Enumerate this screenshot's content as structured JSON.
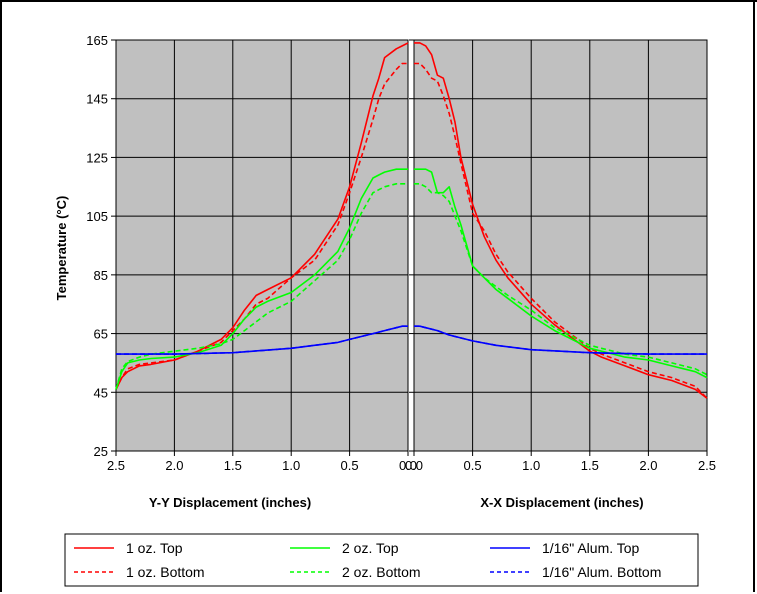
{
  "chart_data": {
    "type": "line",
    "ylabel": "Temperature (°C)",
    "ylim": [
      25,
      165
    ],
    "yticks": [
      "165",
      "145",
      "125",
      "105",
      "85",
      "65",
      "45",
      "25"
    ],
    "grid": true,
    "legend_position": "bottom",
    "panels": [
      {
        "xlabel": "Y-Y Displacement (inches)",
        "xlim": [
          2.5,
          0.0
        ],
        "xticks": [
          "2.5",
          "2.0",
          "1.5",
          "1.0",
          "0.5",
          "0.0"
        ],
        "series": [
          {
            "name": "1 oz. Top",
            "x": [
              2.5,
              2.45,
              2.4,
              2.3,
              2.2,
              2.0,
              1.8,
              1.6,
              1.5,
              1.4,
              1.3,
              1.2,
              1.0,
              0.8,
              0.6,
              0.5,
              0.4,
              0.3,
              0.25,
              0.2,
              0.1,
              0.05,
              0.0
            ],
            "y": [
              46,
              50,
              52,
              54,
              54.5,
              56,
              59,
              63,
              67,
              73,
              78,
              80,
              84,
              92,
              104,
              115,
              130,
              146,
              152,
              159,
              162,
              163,
              164
            ]
          },
          {
            "name": "1 oz. Bottom",
            "x": [
              2.5,
              2.45,
              2.4,
              2.3,
              2.2,
              2.0,
              1.8,
              1.6,
              1.5,
              1.4,
              1.3,
              1.2,
              1.0,
              0.8,
              0.6,
              0.5,
              0.4,
              0.3,
              0.25,
              0.2,
              0.1,
              0.05,
              0.0
            ],
            "y": [
              46,
              50,
              53,
              54.5,
              55,
              56,
              59,
              62,
              66,
              70,
              75,
              77,
              84,
              90,
              102,
              113,
              125,
              138,
              145,
              150,
              155,
              157,
              157
            ]
          },
          {
            "name": "2 oz. Top",
            "x": [
              2.5,
              2.45,
              2.4,
              2.3,
              2.2,
              2.0,
              1.8,
              1.6,
              1.5,
              1.4,
              1.3,
              1.2,
              1.0,
              0.8,
              0.6,
              0.5,
              0.4,
              0.3,
              0.25,
              0.2,
              0.1,
              0.05,
              0.0
            ],
            "y": [
              46,
              52,
              55,
              56,
              56.5,
              57,
              58.5,
              61,
              65,
              70,
              74,
              76,
              79,
              85,
              93,
              101,
              111,
              118,
              119,
              120,
              121,
              121,
              121
            ]
          },
          {
            "name": "2 oz. Bottom",
            "x": [
              2.5,
              2.45,
              2.4,
              2.3,
              2.2,
              2.0,
              1.8,
              1.6,
              1.5,
              1.4,
              1.3,
              1.2,
              1.0,
              0.8,
              0.6,
              0.5,
              0.4,
              0.3,
              0.25,
              0.2,
              0.1,
              0.05,
              0.0
            ],
            "y": [
              46,
              53,
              55.5,
              57,
              58,
              59,
              60,
              61.5,
              63,
              66,
              69,
              72,
              76,
              83,
              90,
              97,
              106,
              113,
              114,
              115,
              116,
              116,
              116
            ]
          },
          {
            "name": "1/16\" Alum. Top",
            "x": [
              2.5,
              2.0,
              1.5,
              1.0,
              0.8,
              0.6,
              0.5,
              0.4,
              0.3,
              0.2,
              0.1,
              0.05,
              0.0
            ],
            "y": [
              58,
              58,
              58.5,
              60,
              61,
              62,
              63,
              64,
              65,
              66,
              67,
              67.5,
              67.5
            ]
          },
          {
            "name": "1/16\" Alum. Bottom",
            "x": [
              2.5,
              2.0,
              1.5,
              1.0,
              0.8,
              0.6,
              0.5,
              0.4,
              0.3,
              0.2,
              0.1,
              0.05,
              0.0
            ],
            "y": [
              58,
              58,
              58.5,
              60,
              61,
              62,
              63,
              64,
              65,
              66,
              67,
              67.5,
              67.5
            ]
          }
        ]
      },
      {
        "xlabel": "X-X Displacement (inches)",
        "xlim": [
          0.0,
          2.5
        ],
        "xticks": [
          "0.0",
          "0.5",
          "1.0",
          "1.5",
          "2.0",
          "2.5"
        ],
        "series": [
          {
            "name": "1 oz. Top",
            "x": [
              0.0,
              0.05,
              0.1,
              0.15,
              0.2,
              0.25,
              0.3,
              0.35,
              0.4,
              0.5,
              0.6,
              0.7,
              0.8,
              1.0,
              1.2,
              1.4,
              1.5,
              1.6,
              1.8,
              2.0,
              2.2,
              2.4,
              2.5
            ],
            "y": [
              164,
              164,
              163,
              160,
              153,
              152,
              145,
              137,
              125,
              109,
              98,
              90,
              84,
              75,
              68,
              62,
              59,
              57,
              54,
              51,
              49,
              46,
              43
            ]
          },
          {
            "name": "1 oz. Bottom",
            "x": [
              0.0,
              0.05,
              0.1,
              0.15,
              0.2,
              0.25,
              0.3,
              0.35,
              0.4,
              0.5,
              0.6,
              0.7,
              0.8,
              1.0,
              1.2,
              1.4,
              1.5,
              1.6,
              1.8,
              2.0,
              2.2,
              2.4,
              2.5
            ],
            "y": [
              157,
              157,
              155,
              152,
              151,
              146,
              140,
              132,
              123,
              106,
              100,
              92,
              86,
              77,
              69,
              63,
              60,
              58,
              55,
              52,
              50,
              47,
              43
            ]
          },
          {
            "name": "2 oz. Top",
            "x": [
              0.0,
              0.05,
              0.1,
              0.15,
              0.2,
              0.25,
              0.3,
              0.35,
              0.4,
              0.5,
              0.6,
              0.7,
              0.8,
              1.0,
              1.2,
              1.4,
              1.5,
              1.6,
              1.8,
              2.0,
              2.2,
              2.4,
              2.5
            ],
            "y": [
              121,
              121,
              121,
              120,
              113,
              113,
              115,
              108,
              102,
              88,
              84,
              80,
              77,
              71,
              66,
              62,
              60,
              59,
              57,
              56,
              54,
              52,
              50
            ]
          },
          {
            "name": "2 oz. Bottom",
            "x": [
              0.0,
              0.05,
              0.1,
              0.15,
              0.2,
              0.25,
              0.3,
              0.35,
              0.4,
              0.5,
              0.6,
              0.7,
              0.8,
              1.0,
              1.2,
              1.4,
              1.5,
              1.6,
              1.8,
              2.0,
              2.2,
              2.4,
              2.5
            ],
            "y": [
              116,
              116,
              115,
              113,
              113,
              112,
              110,
              105,
              100,
              88,
              84,
              81,
              78,
              73,
              67,
              63,
              61,
              60,
              58,
              57,
              55,
              53,
              51
            ]
          },
          {
            "name": "1/16\" Alum. Top",
            "x": [
              0.0,
              0.05,
              0.1,
              0.2,
              0.3,
              0.5,
              0.7,
              1.0,
              1.5,
              2.0,
              2.5
            ],
            "y": [
              67.5,
              67.5,
              67,
              66,
              64.5,
              62.5,
              61,
              59.5,
              58.5,
              58,
              58
            ]
          },
          {
            "name": "1/16\" Alum. Bottom",
            "x": [
              0.0,
              0.05,
              0.1,
              0.2,
              0.3,
              0.5,
              0.7,
              1.0,
              1.5,
              2.0,
              2.5
            ],
            "y": [
              67.5,
              67.5,
              67,
              66,
              64.5,
              62.5,
              61,
              59.5,
              58.5,
              58,
              58
            ]
          }
        ]
      }
    ],
    "legend": [
      {
        "name": "1 oz. Top",
        "color": "#ff0000",
        "style": "solid"
      },
      {
        "name": "2 oz. Top",
        "color": "#00ff00",
        "style": "solid"
      },
      {
        "name": "1/16\" Alum. Top",
        "color": "#0000ff",
        "style": "solid"
      },
      {
        "name": "1 oz. Bottom",
        "color": "#ff0000",
        "style": "dashed"
      },
      {
        "name": "2 oz. Bottom",
        "color": "#00ff00",
        "style": "dashed"
      },
      {
        "name": "1/16\" Alum. Bottom",
        "color": "#0000ff",
        "style": "dashed"
      }
    ],
    "colors": {
      "plot_background": "#c0c0c0",
      "grid": "#000000"
    }
  }
}
